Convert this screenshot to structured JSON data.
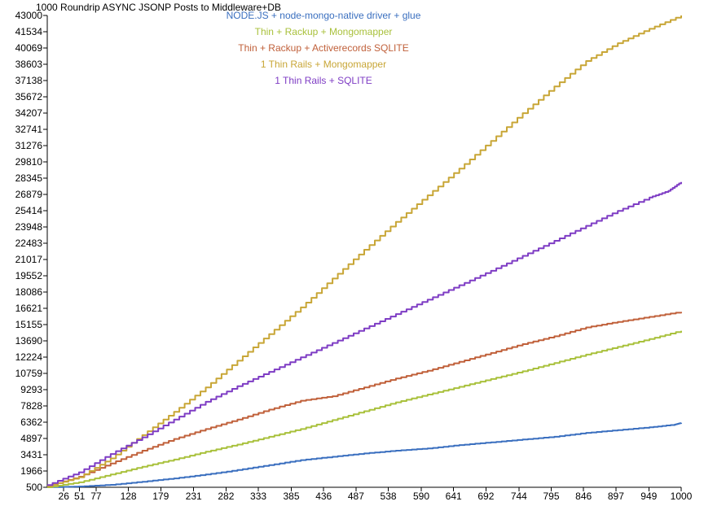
{
  "chart_data": {
    "type": "line",
    "title": "1000 Roundrip ASYNC JSONP Posts to Middleware+DB",
    "xlim": [
      0,
      1000
    ],
    "ylim": [
      500,
      43000
    ],
    "x_ticks": [
      26,
      51,
      77,
      128,
      179,
      231,
      282,
      333,
      385,
      436,
      487,
      538,
      590,
      641,
      692,
      744,
      795,
      846,
      897,
      949,
      1000
    ],
    "y_ticks": [
      500,
      1966,
      3431,
      4897,
      6362,
      7828,
      9293,
      10759,
      12224,
      13690,
      15155,
      16621,
      18086,
      19552,
      21017,
      22483,
      23948,
      25414,
      26879,
      28345,
      29810,
      31276,
      32741,
      34207,
      35672,
      37138,
      38603,
      40069,
      41534,
      43000
    ],
    "legend_position": "top-center",
    "grid": false,
    "series": [
      {
        "name": "NODE.JS + node-mongo-native driver + glue",
        "color": "#3a6fbf",
        "x": [
          0,
          50,
          100,
          150,
          200,
          250,
          300,
          350,
          400,
          450,
          500,
          550,
          600,
          650,
          700,
          750,
          800,
          850,
          900,
          950,
          990,
          1000
        ],
        "values": [
          500,
          570,
          720,
          1000,
          1300,
          1650,
          2050,
          2500,
          2950,
          3250,
          3550,
          3800,
          4000,
          4300,
          4550,
          4800,
          5050,
          5400,
          5650,
          5900,
          6150,
          6300
        ]
      },
      {
        "name": "Thin + Rackup + Mongomapper",
        "color": "#a9c13c",
        "x": [
          0,
          50,
          100,
          150,
          200,
          250,
          300,
          350,
          400,
          450,
          500,
          550,
          600,
          650,
          700,
          750,
          800,
          850,
          900,
          950,
          1000
        ],
        "values": [
          500,
          950,
          1650,
          2350,
          3000,
          3700,
          4350,
          5050,
          5750,
          6550,
          7350,
          8150,
          8850,
          9550,
          10250,
          10950,
          11700,
          12450,
          13150,
          13850,
          14600
        ]
      },
      {
        "name": "Thin + Rackup + Activerecords SQLITE",
        "color": "#c0603a",
        "x": [
          0,
          50,
          100,
          150,
          200,
          250,
          300,
          350,
          400,
          450,
          500,
          550,
          600,
          650,
          700,
          750,
          800,
          850,
          900,
          950,
          1000
        ],
        "values": [
          600,
          1450,
          2650,
          3800,
          4850,
          5750,
          6600,
          7500,
          8300,
          8700,
          9500,
          10300,
          11000,
          11800,
          12600,
          13400,
          14100,
          14900,
          15400,
          15850,
          16300
        ]
      },
      {
        "name": "1 Thin Rails + Mongomapper",
        "color": "#c8a636",
        "x": [
          0,
          50,
          100,
          150,
          200,
          250,
          300,
          350,
          400,
          450,
          500,
          550,
          600,
          650,
          700,
          750,
          800,
          850,
          900,
          950,
          1000
        ],
        "values": [
          600,
          1400,
          3100,
          5200,
          7300,
          9500,
          11900,
          14300,
          16700,
          19300,
          21900,
          24400,
          26800,
          29200,
          31700,
          34200,
          36600,
          38900,
          40500,
          41800,
          43000
        ]
      },
      {
        "name": "1 Thin Rails + SQLITE",
        "color": "#7e3cc4",
        "x": [
          0,
          50,
          100,
          150,
          200,
          250,
          300,
          350,
          400,
          450,
          500,
          550,
          600,
          650,
          700,
          750,
          800,
          850,
          900,
          950,
          980,
          1000
        ],
        "values": [
          700,
          1850,
          3500,
          5000,
          6600,
          8200,
          9600,
          10900,
          12200,
          13500,
          14800,
          16100,
          17400,
          18700,
          20000,
          21350,
          22700,
          24050,
          25400,
          26600,
          27200,
          28000
        ]
      }
    ]
  }
}
